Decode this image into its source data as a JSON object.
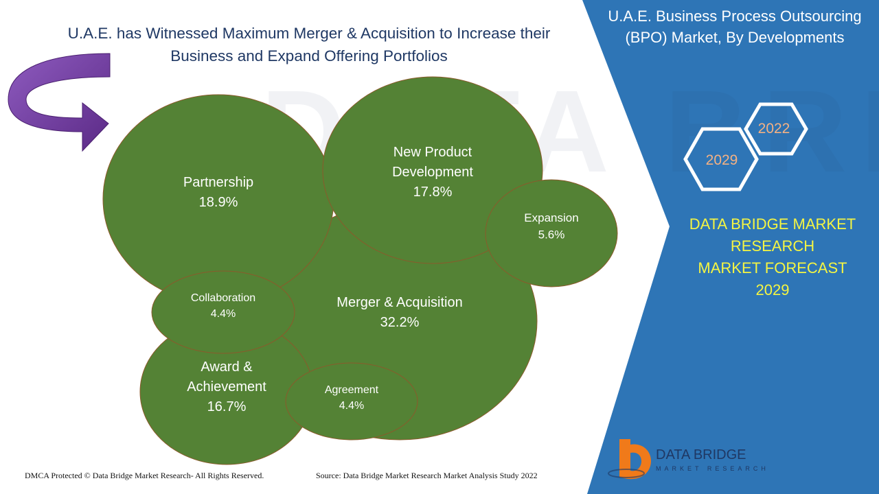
{
  "header": {
    "title_line1": "U.A.E. has Witnessed Maximum Merger & Acquisition to Increase their",
    "title_line2": "Business and Expand Offering Portfolios"
  },
  "sidebar": {
    "title_line1": "U.A.E. Business Process Outsourcing",
    "title_line2": "(BPO) Market, By Developments",
    "year_start": "2022",
    "year_end": "2029",
    "forecast_line1": "DATA BRIDGE MARKET",
    "forecast_line2": "RESEARCH",
    "forecast_line3": "MARKET FORECAST",
    "forecast_line4": "2029"
  },
  "logo": {
    "name": "DATA BRIDGE",
    "tagline": "MARKET RESEARCH"
  },
  "footer": {
    "copyright": "DMCA Protected © Data Bridge Market Research- All Rights Reserved.",
    "source": "Source: Data Bridge Market Research Market Analysis Study 2022"
  },
  "colors": {
    "bubble_fill": "#548235",
    "bubble_stroke": "#8b5a2b",
    "panel_blue": "#2e75b6",
    "arrow_purple": "#7030a0",
    "title_navy": "#1f3864",
    "forecast_yellow": "#f5f542",
    "year_orange": "#f4b183"
  },
  "chart_data": {
    "type": "bubble",
    "title": "U.A.E. Business Process Outsourcing (BPO) Market, By Developments",
    "unit": "%",
    "categories": [
      "Merger & Acquisition",
      "Partnership",
      "New Product Development",
      "Award & Achievement",
      "Expansion",
      "Collaboration",
      "Agreement"
    ],
    "values": [
      32.2,
      18.9,
      17.8,
      16.7,
      5.6,
      4.4,
      4.4
    ],
    "labels": [
      [
        "Merger & Acquisition"
      ],
      [
        "Partnership"
      ],
      [
        "New Product",
        "Development"
      ],
      [
        "Award &",
        "Achievement"
      ],
      [
        "Expansion"
      ],
      [
        "Collaboration"
      ],
      [
        "Agreement"
      ]
    ],
    "value_labels": [
      "32.2%",
      "18.9%",
      "17.8%",
      "16.7%",
      "5.6%",
      "4.4%",
      "4.4%"
    ]
  }
}
